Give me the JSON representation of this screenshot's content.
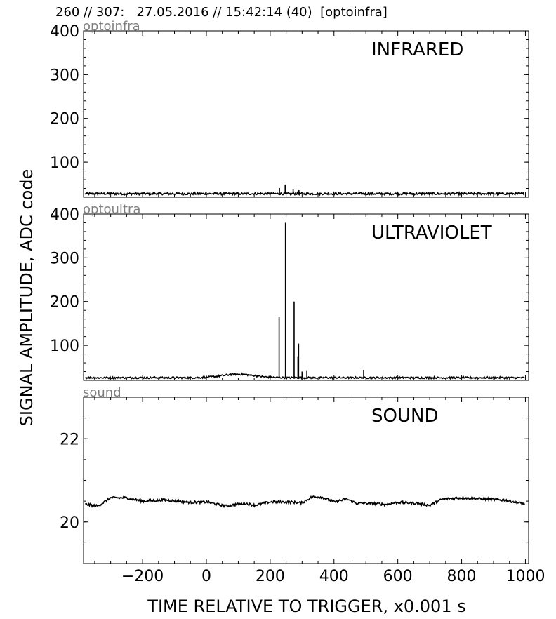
{
  "figure": {
    "title": "260 // 307:   27.05.2016 // 15:42:14 (40)  [optoinfra]",
    "ylabel": "SIGNAL AMPLITUDE,  ADC code",
    "xlabel": "TIME RELATIVE TO TRIGGER,   x0.001 s"
  },
  "chart_data": [
    {
      "type": "line",
      "channel": "optoinfra",
      "title": "INFRARED",
      "xlim": [
        -385,
        1010
      ],
      "ylim": [
        20,
        400
      ],
      "x_ticks": [
        -200,
        0,
        200,
        400,
        600,
        800,
        1000
      ],
      "y_ticks": [
        100,
        200,
        300,
        400
      ],
      "y_tick_labels": [
        "100",
        "200",
        "300",
        "400"
      ],
      "baseline": 28,
      "noise": 2.5,
      "spikes": [
        [
          229,
          41
        ],
        [
          247,
          49
        ],
        [
          272,
          38
        ],
        [
          290,
          36
        ]
      ],
      "series": [
        {
          "points": [
            [
              -385,
              28
            ],
            [
              -300,
              28
            ],
            [
              -150,
              29
            ],
            [
              0,
              28
            ],
            [
              100,
              29
            ],
            [
              200,
              28
            ],
            [
              229,
              41
            ],
            [
              247,
              49
            ],
            [
              272,
              38
            ],
            [
              290,
              36
            ],
            [
              400,
              28
            ],
            [
              600,
              29
            ],
            [
              800,
              28
            ],
            [
              1000,
              28
            ]
          ]
        }
      ]
    },
    {
      "type": "line",
      "channel": "optoultra",
      "title": "ULTRAVIOLET",
      "xlim": [
        -385,
        1010
      ],
      "ylim": [
        20,
        400
      ],
      "x_ticks": [
        -200,
        0,
        200,
        400,
        600,
        800,
        1000
      ],
      "y_ticks": [
        100,
        200,
        300,
        400
      ],
      "y_tick_labels": [
        "100",
        "200",
        "300",
        "400"
      ],
      "baseline": 26,
      "noise": 2,
      "bump": {
        "center": 100,
        "width": 70,
        "height": 8
      },
      "spikes": [
        [
          228,
          165
        ],
        [
          248,
          380
        ],
        [
          275,
          200
        ],
        [
          289,
          104
        ],
        [
          287,
          75
        ],
        [
          300,
          40
        ],
        [
          315,
          43
        ],
        [
          493,
          44
        ]
      ],
      "series": [
        {
          "points": [
            [
              -385,
              26
            ],
            [
              -200,
              26
            ],
            [
              0,
              29
            ],
            [
              100,
              34
            ],
            [
              200,
              27
            ],
            [
              228,
              165
            ],
            [
              248,
              380
            ],
            [
              275,
              200
            ],
            [
              289,
              104
            ],
            [
              300,
              40
            ],
            [
              315,
              43
            ],
            [
              400,
              28
            ],
            [
              493,
              44
            ],
            [
              600,
              26
            ],
            [
              800,
              26
            ],
            [
              1000,
              26
            ]
          ]
        }
      ]
    },
    {
      "type": "line",
      "channel": "sound",
      "title": "SOUND",
      "xlim": [
        -385,
        1010
      ],
      "ylim": [
        19,
        23
      ],
      "x_ticks": [
        -200,
        0,
        200,
        400,
        600,
        800,
        1000
      ],
      "x_tick_labels": [
        "−200",
        "0",
        "200",
        "400",
        "600",
        "800",
        "1000"
      ],
      "y_ticks": [
        20,
        22
      ],
      "y_tick_labels": [
        "20",
        "22"
      ],
      "noise": 0.03,
      "series": [
        {
          "points": [
            [
              -385,
              20.43
            ],
            [
              -340,
              20.38
            ],
            [
              -300,
              20.58
            ],
            [
              -250,
              20.58
            ],
            [
              -200,
              20.5
            ],
            [
              -130,
              20.53
            ],
            [
              -50,
              20.47
            ],
            [
              0,
              20.48
            ],
            [
              60,
              20.38
            ],
            [
              120,
              20.45
            ],
            [
              150,
              20.4
            ],
            [
              200,
              20.48
            ],
            [
              260,
              20.48
            ],
            [
              300,
              20.46
            ],
            [
              330,
              20.6
            ],
            [
              360,
              20.6
            ],
            [
              400,
              20.48
            ],
            [
              440,
              20.55
            ],
            [
              470,
              20.45
            ],
            [
              520,
              20.45
            ],
            [
              560,
              20.42
            ],
            [
              600,
              20.47
            ],
            [
              660,
              20.45
            ],
            [
              700,
              20.4
            ],
            [
              740,
              20.55
            ],
            [
              800,
              20.58
            ],
            [
              880,
              20.55
            ],
            [
              940,
              20.52
            ],
            [
              985,
              20.45
            ],
            [
              1000,
              20.43
            ]
          ]
        }
      ]
    }
  ]
}
